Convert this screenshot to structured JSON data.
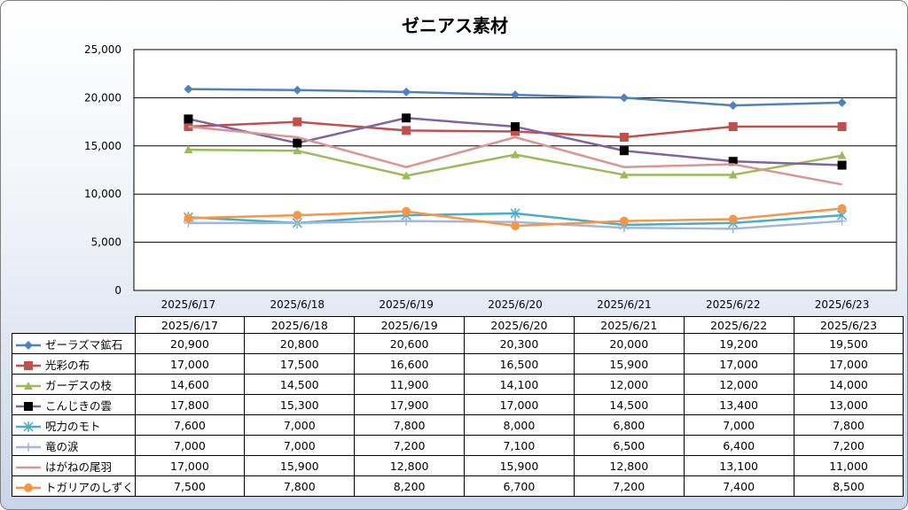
{
  "chart_data": {
    "type": "line",
    "title": "ゼニアス素材",
    "categories": [
      "2025/6/17",
      "2025/6/18",
      "2025/6/19",
      "2025/6/20",
      "2025/6/21",
      "2025/6/22",
      "2025/6/23"
    ],
    "ylim": [
      0,
      25000
    ],
    "yticks": [
      0,
      5000,
      10000,
      15000,
      20000,
      25000
    ],
    "ytick_labels": [
      "0",
      "5,000",
      "10,000",
      "15,000",
      "20,000",
      "25,000"
    ],
    "grid": true,
    "legend": "data-table",
    "series": [
      {
        "name": "ゼーラズマ鉱石",
        "color": "#4f81bd",
        "marker": "diamond",
        "values": [
          20900,
          20800,
          20600,
          20300,
          20000,
          19200,
          19500
        ],
        "labels": [
          "20,900",
          "20,800",
          "20,600",
          "20,300",
          "20,000",
          "19,200",
          "19,500"
        ]
      },
      {
        "name": "光彩の布",
        "color": "#c0504d",
        "marker": "square",
        "values": [
          17000,
          17500,
          16600,
          16500,
          15900,
          17000,
          17000
        ],
        "labels": [
          "17,000",
          "17,500",
          "16,600",
          "16,500",
          "15,900",
          "17,000",
          "17,000"
        ]
      },
      {
        "name": "ガーデスの枝",
        "color": "#9bbb59",
        "marker": "triangle",
        "values": [
          14600,
          14500,
          11900,
          14100,
          12000,
          12000,
          14000
        ],
        "labels": [
          "14,600",
          "14,500",
          "11,900",
          "14,100",
          "12,000",
          "12,000",
          "14,000"
        ]
      },
      {
        "name": "こんじきの雲",
        "color": "#8064a2",
        "marker": "square-black",
        "values": [
          17800,
          15300,
          17900,
          17000,
          14500,
          13400,
          13000
        ],
        "labels": [
          "17,800",
          "15,300",
          "17,900",
          "17,000",
          "14,500",
          "13,400",
          "13,000"
        ]
      },
      {
        "name": "呪力のモト",
        "color": "#4bacc6",
        "marker": "star",
        "values": [
          7600,
          7000,
          7800,
          8000,
          6800,
          7000,
          7800
        ],
        "labels": [
          "7,600",
          "7,000",
          "7,800",
          "8,000",
          "6,800",
          "7,000",
          "7,800"
        ]
      },
      {
        "name": "竜の涙",
        "color": "#a5b6d9",
        "marker": "plus",
        "values": [
          7000,
          7000,
          7200,
          7100,
          6500,
          6400,
          7200
        ],
        "labels": [
          "7,000",
          "7,000",
          "7,200",
          "7,100",
          "6,500",
          "6,400",
          "7,200"
        ]
      },
      {
        "name": "はがねの尾羽",
        "color": "#d99694",
        "marker": "none",
        "values": [
          17000,
          15900,
          12800,
          15900,
          12800,
          13100,
          11000
        ],
        "labels": [
          "17,000",
          "15,900",
          "12,800",
          "15,900",
          "12,800",
          "13,100",
          "11,000"
        ]
      },
      {
        "name": "トガリアのしずく",
        "color": "#f79646",
        "marker": "circle",
        "values": [
          7500,
          7800,
          8200,
          6700,
          7200,
          7400,
          8500
        ],
        "labels": [
          "7,500",
          "7,800",
          "8,200",
          "6,700",
          "7,200",
          "7,400",
          "8,500"
        ]
      }
    ]
  }
}
